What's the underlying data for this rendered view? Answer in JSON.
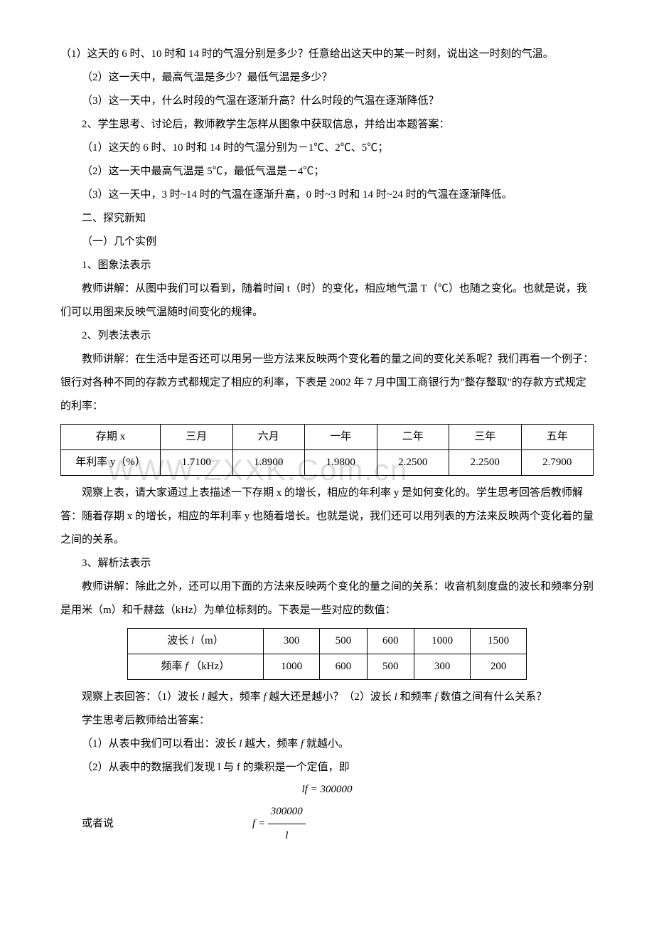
{
  "paragraphs": {
    "p1": "（1）这天的 6 时、10 时和 14 时的气温分别是多少？任意给出这天中的某一时刻，说出这一时刻的气温。",
    "p2": "（2）这一天中，最高气温是多少？最低气温是多少？",
    "p3": "（3）这一天中，什么时段的气温在逐渐升高？什么时段的气温在逐渐降低？",
    "p4": "2、学生思考、讨论后，教师教学生怎样从图象中获取信息，并给出本题答案：",
    "p5": "（1）这天的 6 时、10 时和 14 时的气温分别为－1℃、2℃、5℃；",
    "p6": "（2）这一天中最高气温是 5℃，最低气温是－4℃；",
    "p7": "（3）这一天中，3 时~14 时的气温在逐渐升高，0 时~3 时和 14 时~24 时的气温在逐渐降低。",
    "p8": "二、探究新知",
    "p9": "（一）几个实例",
    "p10": "1、图象法表示",
    "p11": "教师讲解：从图中我们可以看到，随着时间 t（时）的变化，相应地气温 T（℃）也随之变化。也就是说，我们可以用图来反映气温随时间变化的规律。",
    "p12": "2、列表法表示",
    "p13": "教师讲解：在生活中是否还可以用另一些方法来反映两个变化着的量之间的变化关系呢？我们再看一个例子：银行对各种不同的存款方式都规定了相应的利率，下表是 2002 年 7 月中国工商银行为\"整存整取\"的存款方式规定的利率：",
    "p14": "观察上表，请大家通过上表描述一下存期 x 的增长，相应的年利率 y 是如何变化的。学生思考回答后教师解答：随着存期 x 的增长，相应的年利率 y 也随着增长。也就是说，我们还可以用列表的方法来反映两个变化着的量之间的关系。",
    "p15": "3、解析法表示",
    "p16": "教师讲解：除此之外，还可以用下面的方法来反映两个变化的量之间的关系：收音机刻度盘的波长和频率分别是用米（m）和千赫兹（kHz）为单位标刻的。下表是一些对应的数值：",
    "p17_prefix": "观察上表回答：（1）波长 ",
    "p17_a": "l",
    "p17_b": " 越大，频率 ",
    "p17_c": "f",
    "p17_d": " 越大还是越小？（2）波长 ",
    "p17_e": "l",
    "p17_f": " 和频率 ",
    "p17_g": "f",
    "p17_h": " 数值之间有什么关系？",
    "p18": "学生思考后教师给出答案：",
    "p19_a": "（1）从表中我们可以看出：波长 ",
    "p19_b": "l",
    "p19_c": " 越大，频率 ",
    "p19_d": "f",
    "p19_e": " 就越小。",
    "p20": "（2）从表中的数据我们发现 l 与 f 的乘积是一个定值，即",
    "eq1": "lf = 300000",
    "eq2_label": "或者说",
    "eq2_f": "f",
    "eq2_eq": " = ",
    "eq2_num": "300000",
    "eq2_den": "l"
  },
  "table1": {
    "headers": [
      "存期 x",
      "三月",
      "六月",
      "一年",
      "二年",
      "三年",
      "五年"
    ],
    "row_label": "年利率 y（%）",
    "values": [
      "1.7100",
      "1.8900",
      "1.9800",
      "2.2500",
      "2.2500",
      "2.7900"
    ]
  },
  "table2": {
    "row1_label": "波长 l （m）",
    "row1_values": [
      "300",
      "500",
      "600",
      "1000",
      "1500"
    ],
    "row2_label": "频率 f （kHz）",
    "row2_values": [
      "1000",
      "600",
      "500",
      "300",
      "200"
    ]
  },
  "watermark": "WWW.ZXXK.Com.cn",
  "colors": {
    "text": "#000000",
    "bg": "#ffffff",
    "watermark": "rgba(180,180,180,0.45)"
  }
}
